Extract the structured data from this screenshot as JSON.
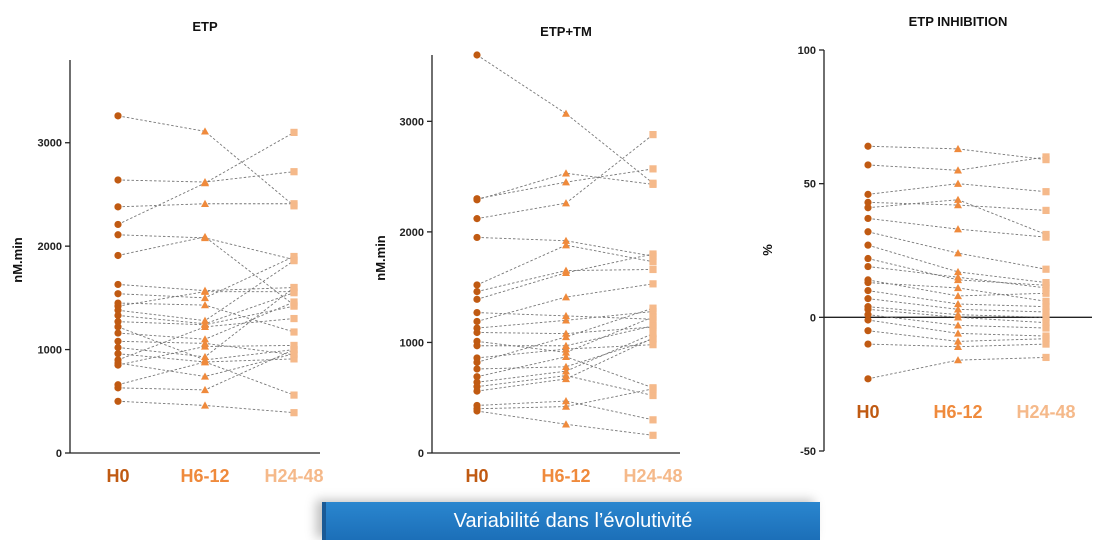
{
  "banner": "Variabilité dans l’évolutivité",
  "category_colors": [
    "#c05a12",
    "#ef8a3c",
    "#f5b98a"
  ],
  "chart_data": [
    {
      "type": "scatter",
      "title": "ETP",
      "ylabel": "nM.min",
      "categories": [
        "H0",
        "H6-12",
        "H24-48"
      ],
      "ylim": [
        0,
        3800
      ],
      "yticks": [
        "0",
        "1000",
        "2000",
        "3000"
      ],
      "ytick_values": [
        0,
        1000,
        2000,
        3000
      ],
      "pairs": [
        [
          3260,
          3110,
          2390
        ],
        [
          2640,
          2620,
          2720
        ],
        [
          2380,
          2410,
          2410
        ],
        [
          2210,
          2610,
          3100
        ],
        [
          2110,
          2080,
          1870
        ],
        [
          1910,
          2090,
          1430
        ],
        [
          1630,
          1570,
          1600
        ],
        [
          1540,
          1500,
          1900
        ],
        [
          1450,
          1430,
          1170
        ],
        [
          1420,
          1560,
          1560
        ],
        [
          1380,
          1280,
          1860
        ],
        [
          1330,
          1250,
          1550
        ],
        [
          1270,
          1240,
          1420
        ],
        [
          1220,
          900,
          1000
        ],
        [
          1160,
          1100,
          1460
        ],
        [
          1080,
          1060,
          950
        ],
        [
          1020,
          930,
          1600
        ],
        [
          960,
          880,
          910
        ],
        [
          900,
          1220,
          1300
        ],
        [
          870,
          740,
          960
        ],
        [
          850,
          1030,
          1040
        ],
        [
          660,
          880,
          560
        ],
        [
          630,
          610,
          1000
        ],
        [
          500,
          460,
          390
        ]
      ]
    },
    {
      "type": "scatter",
      "title": "ETP+TM",
      "ylabel": "nM.min",
      "categories": [
        "H0",
        "H6-12",
        "H24-48"
      ],
      "ylim": [
        0,
        3600
      ],
      "yticks": [
        "0",
        "1000",
        "2000",
        "3000"
      ],
      "ytick_values": [
        0,
        1000,
        2000,
        3000
      ],
      "pairs": [
        [
          3600,
          3070,
          2440
        ],
        [
          2300,
          2450,
          2570
        ],
        [
          2290,
          2530,
          2430
        ],
        [
          2120,
          2260,
          2880
        ],
        [
          1950,
          1920,
          1780
        ],
        [
          1520,
          1880,
          1730
        ],
        [
          1460,
          1650,
          1660
        ],
        [
          1390,
          1630,
          1800
        ],
        [
          1270,
          1240,
          1210
        ],
        [
          1190,
          1410,
          1530
        ],
        [
          1130,
          1200,
          1280
        ],
        [
          1090,
          1080,
          1140
        ],
        [
          1010,
          910,
          1230
        ],
        [
          970,
          970,
          1150
        ],
        [
          860,
          940,
          980
        ],
        [
          820,
          1050,
          1310
        ],
        [
          760,
          780,
          1030
        ],
        [
          690,
          870,
          590
        ],
        [
          640,
          740,
          1080
        ],
        [
          600,
          700,
          520
        ],
        [
          560,
          670,
          1040
        ],
        [
          430,
          470,
          300
        ],
        [
          400,
          420,
          580
        ],
        [
          380,
          260,
          160
        ]
      ]
    },
    {
      "type": "scatter",
      "title": "ETP INHIBITION",
      "ylabel": "%",
      "categories": [
        "H0",
        "H6-12",
        "H24-48"
      ],
      "ylim": [
        -50,
        100
      ],
      "yticks": [
        "-50",
        "0",
        "50",
        "100"
      ],
      "ytick_values": [
        -50,
        0,
        50,
        100
      ],
      "zero_line": true,
      "pairs": [
        [
          64,
          63,
          59
        ],
        [
          57,
          55,
          60
        ],
        [
          46,
          50,
          47
        ],
        [
          43,
          42,
          40
        ],
        [
          41,
          44,
          31
        ],
        [
          37,
          33,
          30
        ],
        [
          32,
          24,
          18
        ],
        [
          27,
          17,
          13
        ],
        [
          22,
          14,
          12
        ],
        [
          19,
          15,
          11
        ],
        [
          14,
          8,
          9
        ],
        [
          13,
          11,
          6
        ],
        [
          10,
          5,
          4
        ],
        [
          7,
          3,
          2
        ],
        [
          4,
          1,
          0
        ],
        [
          3,
          0,
          -2
        ],
        [
          1,
          -3,
          -4
        ],
        [
          -1,
          -6,
          -7
        ],
        [
          -5,
          -9,
          -8
        ],
        [
          -10,
          -11,
          -10
        ],
        [
          -23,
          -16,
          -15
        ]
      ]
    }
  ]
}
